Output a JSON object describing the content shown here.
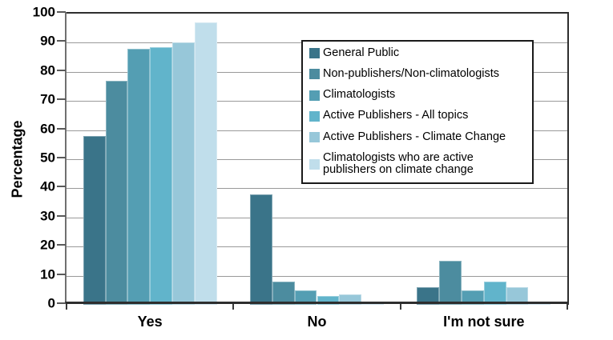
{
  "chart_data": {
    "type": "bar",
    "title": "",
    "xlabel": "",
    "ylabel": "Percentage",
    "ylim": [
      0,
      100
    ],
    "yticks": [
      0,
      10,
      20,
      30,
      40,
      50,
      60,
      70,
      80,
      90,
      100
    ],
    "grid": "horizontal",
    "legend_position": "upper-right",
    "categories": [
      "Yes",
      "No",
      "I'm not sure"
    ],
    "series": [
      {
        "name": "General Public",
        "color": "#3A7489",
        "values": [
          58,
          38,
          6
        ]
      },
      {
        "name": "Non-publishers/Non-climatologists",
        "color": "#4C8C9F",
        "values": [
          77,
          8,
          15
        ]
      },
      {
        "name": "Climatologists",
        "color": "#549EB3",
        "values": [
          88,
          5,
          5
        ]
      },
      {
        "name": "Active Publishers - All topics",
        "color": "#61B4CB",
        "values": [
          88.5,
          3,
          8
        ]
      },
      {
        "name": "Active Publishers - Climate Change",
        "color": "#97C7D9",
        "values": [
          90,
          3.5,
          6
        ]
      },
      {
        "name": "Climatologists who are active publishers on climate change",
        "color": "#C0DEEB",
        "values": [
          97,
          1,
          1
        ]
      }
    ]
  }
}
